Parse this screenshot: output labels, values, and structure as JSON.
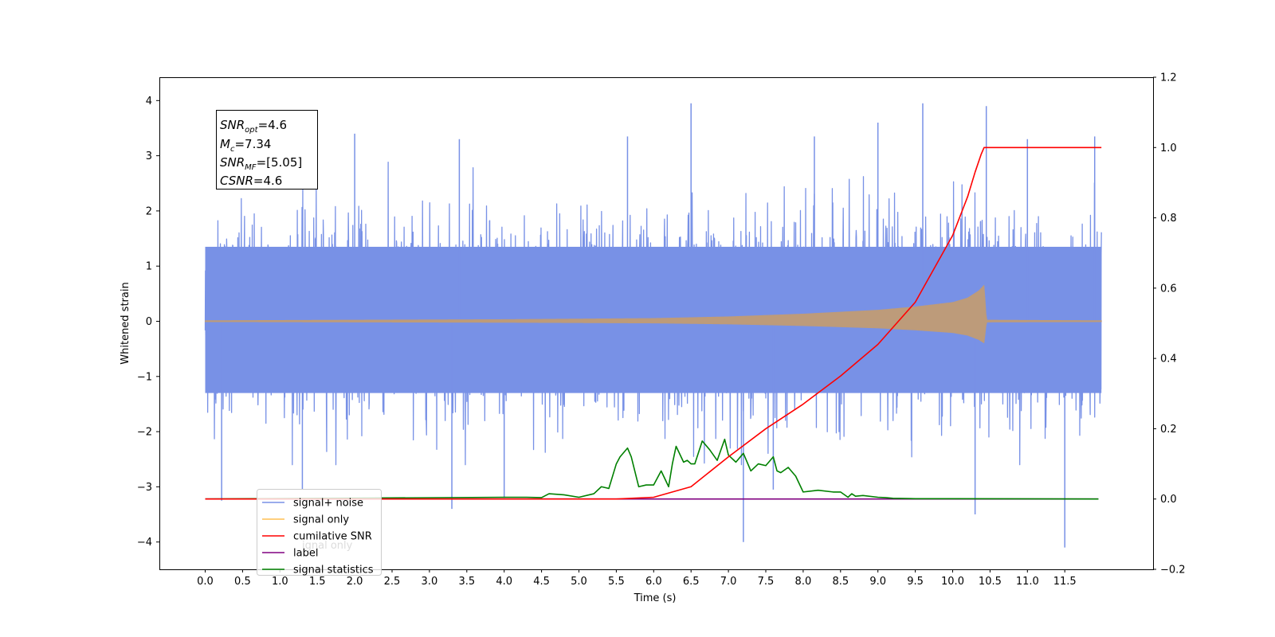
{
  "chart_data": {
    "type": "line",
    "xlabel": "Time (s)",
    "ylabel": "Whitened strain",
    "xlim": [
      -0.6,
      12.6
    ],
    "ylim": [
      -4.5,
      4.35
    ],
    "y2lim": [
      -0.2,
      1.2
    ],
    "x_ticks": [
      0.0,
      0.5,
      1.0,
      1.5,
      2.0,
      2.5,
      3.0,
      3.5,
      4.0,
      4.5,
      5.0,
      5.5,
      6.0,
      6.5,
      7.0,
      7.5,
      8.0,
      8.5,
      9.0,
      9.5,
      10.0,
      10.5,
      11.0,
      11.5
    ],
    "x_tick_labels": [
      "0.0",
      "0.5",
      "1.0",
      "1.5",
      "2.0",
      "2.5",
      "3.0",
      "3.5",
      "4.0",
      "4.5",
      "5.0",
      "5.5",
      "6.0",
      "6.5",
      "7.0",
      "7.5",
      "8.0",
      "8.5",
      "9.0",
      "9.5",
      "10.0",
      "10.5",
      "11.0",
      "11.5"
    ],
    "y_ticks": [
      -4,
      -3,
      -2,
      -1,
      0,
      1,
      2,
      3,
      4
    ],
    "y_tick_labels": [
      "−4",
      "−3",
      "−2",
      "−1",
      "0",
      "1",
      "2",
      "3",
      "4"
    ],
    "y2_ticks": [
      -0.2,
      0.0,
      0.2,
      0.4,
      0.6,
      0.8,
      1.0,
      1.2
    ],
    "y2_tick_labels": [
      "−0.2",
      "0.0",
      "0.2",
      "0.4",
      "0.6",
      "0.8",
      "1.0",
      "1.2"
    ],
    "noise_band": {
      "x_range": [
        0.0,
        11.99
      ],
      "typical_range": [
        -2.0,
        2.2
      ],
      "spikes": [
        {
          "x": 0.22,
          "y": -3.25
        },
        {
          "x": 1.3,
          "y": -3.05
        },
        {
          "x": 3.3,
          "y": -3.4
        },
        {
          "x": 4.0,
          "y": -3.2
        },
        {
          "x": 6.5,
          "y": 3.95
        },
        {
          "x": 7.2,
          "y": -4.0
        },
        {
          "x": 7.6,
          "y": -3.05
        },
        {
          "x": 9.6,
          "y": 3.95
        },
        {
          "x": 10.3,
          "y": -3.5
        },
        {
          "x": 11.5,
          "y": -4.1
        },
        {
          "x": 10.45,
          "y": 3.9
        },
        {
          "x": 11.0,
          "y": 3.3
        },
        {
          "x": 11.9,
          "y": 3.35
        },
        {
          "x": 5.65,
          "y": 3.35
        },
        {
          "x": 3.4,
          "y": 3.3
        },
        {
          "x": 2.0,
          "y": 3.4
        },
        {
          "x": 8.15,
          "y": 3.35
        },
        {
          "x": 9.0,
          "y": 3.6
        }
      ]
    },
    "series": [
      {
        "name": "signal+ noise",
        "color": "#7891e6",
        "axis": "left"
      },
      {
        "name": "signal only",
        "color": "#ffbf52",
        "axis": "left",
        "envelope": {
          "x": [
            0.0,
            2.0,
            4.0,
            6.0,
            7.0,
            8.0,
            9.0,
            9.5,
            10.0,
            10.2,
            10.35,
            10.42,
            10.45,
            11.99
          ],
          "amplitude": [
            0.01,
            0.02,
            0.03,
            0.05,
            0.08,
            0.13,
            0.2,
            0.26,
            0.34,
            0.42,
            0.55,
            0.65,
            0.02,
            0.01
          ]
        }
      },
      {
        "name": "cumilative SNR",
        "color": "#ff0000",
        "axis": "right",
        "x": [
          0.0,
          5.5,
          6.0,
          6.5,
          7.0,
          7.5,
          8.0,
          8.5,
          9.0,
          9.5,
          10.0,
          10.2,
          10.3,
          10.38,
          10.42,
          11.99
        ],
        "y": [
          0.0,
          0.0,
          0.005,
          0.035,
          0.12,
          0.2,
          0.27,
          0.35,
          0.44,
          0.56,
          0.75,
          0.86,
          0.93,
          0.98,
          1.0,
          1.0
        ]
      },
      {
        "name": "label",
        "color": "#800080",
        "axis": "right",
        "x": [
          0.0,
          11.95
        ],
        "y": [
          0.0,
          0.0
        ]
      },
      {
        "name": "signal statistics",
        "color": "#008000",
        "axis": "right",
        "x": [
          0.0,
          4.0,
          4.3,
          4.5,
          4.6,
          4.8,
          5.0,
          5.2,
          5.3,
          5.4,
          5.5,
          5.55,
          5.65,
          5.7,
          5.8,
          5.9,
          6.0,
          6.1,
          6.2,
          6.25,
          6.3,
          6.4,
          6.45,
          6.5,
          6.55,
          6.65,
          6.75,
          6.85,
          6.95,
          7.0,
          7.1,
          7.2,
          7.3,
          7.4,
          7.5,
          7.6,
          7.65,
          7.7,
          7.8,
          7.9,
          8.0,
          8.2,
          8.4,
          8.5,
          8.6,
          8.65,
          8.7,
          8.8,
          9.0,
          9.1,
          9.2,
          9.5,
          10.0,
          11.95
        ],
        "y": [
          0.0,
          0.005,
          0.005,
          0.004,
          0.015,
          0.012,
          0.005,
          0.015,
          0.035,
          0.03,
          0.1,
          0.12,
          0.145,
          0.12,
          0.035,
          0.04,
          0.04,
          0.08,
          0.035,
          0.1,
          0.15,
          0.105,
          0.11,
          0.1,
          0.1,
          0.165,
          0.14,
          0.11,
          0.17,
          0.125,
          0.105,
          0.13,
          0.08,
          0.1,
          0.095,
          0.12,
          0.08,
          0.075,
          0.09,
          0.065,
          0.02,
          0.025,
          0.02,
          0.02,
          0.005,
          0.015,
          0.008,
          0.01,
          0.005,
          0.004,
          0.002,
          0.001,
          0.001,
          0.0
        ]
      }
    ],
    "legend": {
      "placement": "lower-left",
      "entries": [
        "signal+ noise",
        "signal only",
        "cumilative SNR",
        "label",
        "signal statistics"
      ],
      "ghost_text": "ignal only"
    }
  },
  "info_box": {
    "snr_opt": {
      "sym": "SNR",
      "sub": "opt",
      "val": "=4.6"
    },
    "mc": {
      "sym": "M",
      "sub": "c",
      "val": "=7.34"
    },
    "snr_mf": {
      "sym": "SNR",
      "sub": "MF",
      "val": "=[5.05]"
    },
    "csnr": {
      "sym": "CSNR",
      "val": "=4.6"
    }
  }
}
